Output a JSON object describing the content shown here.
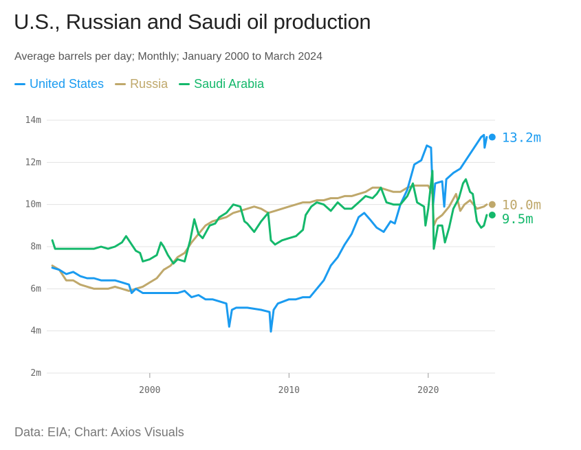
{
  "header": {
    "title": "U.S., Russian and Saudi oil production",
    "subtitle": "Average barrels per day; Monthly; January 2000 to March 2024"
  },
  "footer": {
    "source": "Data: EIA; Chart: Axios Visuals"
  },
  "chart_data": {
    "type": "line",
    "title": "U.S., Russian and Saudi oil production",
    "subtitle": "Average barrels per day; Monthly; January 2000 to March 2024",
    "xlabel": "",
    "ylabel": "",
    "xlim": [
      1992.6,
      2024.8
    ],
    "ylim": [
      2,
      14
    ],
    "y_ticks": [
      2,
      4,
      6,
      8,
      10,
      12,
      14
    ],
    "y_tick_labels": [
      "2m",
      "4m",
      "6m",
      "8m",
      "10m",
      "12m",
      "14m"
    ],
    "x_ticks": [
      2000,
      2010,
      2020
    ],
    "x_tick_labels": [
      "2000",
      "2010",
      "2020"
    ],
    "grid": true,
    "legend_position": "top-left",
    "series": [
      {
        "name": "United States",
        "color": "#1a9bf0",
        "end_label": "13.2m",
        "end_value": 13.2,
        "points": [
          [
            1993.0,
            7.0
          ],
          [
            1993.5,
            6.9
          ],
          [
            1994.0,
            6.7
          ],
          [
            1994.5,
            6.8
          ],
          [
            1995.0,
            6.6
          ],
          [
            1995.5,
            6.5
          ],
          [
            1996.0,
            6.5
          ],
          [
            1996.5,
            6.4
          ],
          [
            1997.0,
            6.4
          ],
          [
            1997.5,
            6.4
          ],
          [
            1998.0,
            6.3
          ],
          [
            1998.5,
            6.2
          ],
          [
            1998.7,
            5.8
          ],
          [
            1999.0,
            6.0
          ],
          [
            1999.5,
            5.8
          ],
          [
            2000.0,
            5.8
          ],
          [
            2001.0,
            5.8
          ],
          [
            2002.0,
            5.8
          ],
          [
            2002.5,
            5.9
          ],
          [
            2003.0,
            5.6
          ],
          [
            2003.5,
            5.7
          ],
          [
            2004.0,
            5.5
          ],
          [
            2004.5,
            5.5
          ],
          [
            2005.0,
            5.4
          ],
          [
            2005.5,
            5.3
          ],
          [
            2005.7,
            4.2
          ],
          [
            2005.9,
            5.0
          ],
          [
            2006.2,
            5.1
          ],
          [
            2007.0,
            5.1
          ],
          [
            2008.0,
            5.0
          ],
          [
            2008.6,
            4.9
          ],
          [
            2008.7,
            3.97
          ],
          [
            2008.9,
            5.0
          ],
          [
            2009.2,
            5.3
          ],
          [
            2010.0,
            5.5
          ],
          [
            2010.5,
            5.5
          ],
          [
            2011.0,
            5.6
          ],
          [
            2011.5,
            5.6
          ],
          [
            2012.0,
            6.0
          ],
          [
            2012.5,
            6.4
          ],
          [
            2013.0,
            7.1
          ],
          [
            2013.5,
            7.5
          ],
          [
            2014.0,
            8.1
          ],
          [
            2014.5,
            8.6
          ],
          [
            2015.0,
            9.4
          ],
          [
            2015.4,
            9.6
          ],
          [
            2015.8,
            9.3
          ],
          [
            2016.3,
            8.9
          ],
          [
            2016.8,
            8.7
          ],
          [
            2017.3,
            9.2
          ],
          [
            2017.6,
            9.1
          ],
          [
            2018.0,
            10.0
          ],
          [
            2018.5,
            10.7
          ],
          [
            2019.0,
            11.9
          ],
          [
            2019.5,
            12.1
          ],
          [
            2019.9,
            12.8
          ],
          [
            2020.2,
            12.7
          ],
          [
            2020.35,
            10.0
          ],
          [
            2020.5,
            11.0
          ],
          [
            2021.0,
            11.1
          ],
          [
            2021.15,
            9.9
          ],
          [
            2021.3,
            11.2
          ],
          [
            2021.8,
            11.5
          ],
          [
            2022.3,
            11.7
          ],
          [
            2022.8,
            12.2
          ],
          [
            2023.3,
            12.7
          ],
          [
            2023.8,
            13.2
          ],
          [
            2024.0,
            13.3
          ],
          [
            2024.05,
            12.7
          ],
          [
            2024.2,
            13.2
          ]
        ]
      },
      {
        "name": "Russia",
        "color": "#bfa86b",
        "end_label": "10.0m",
        "end_value": 10.0,
        "points": [
          [
            1993.0,
            7.1
          ],
          [
            1993.5,
            6.9
          ],
          [
            1994.0,
            6.4
          ],
          [
            1994.5,
            6.4
          ],
          [
            1995.0,
            6.2
          ],
          [
            1995.5,
            6.1
          ],
          [
            1996.0,
            6.0
          ],
          [
            1996.5,
            6.0
          ],
          [
            1997.0,
            6.0
          ],
          [
            1997.5,
            6.1
          ],
          [
            1998.0,
            6.0
          ],
          [
            1998.5,
            5.9
          ],
          [
            1999.0,
            6.0
          ],
          [
            1999.5,
            6.1
          ],
          [
            2000.0,
            6.3
          ],
          [
            2000.5,
            6.5
          ],
          [
            2001.0,
            6.9
          ],
          [
            2001.5,
            7.1
          ],
          [
            2002.0,
            7.5
          ],
          [
            2002.5,
            7.7
          ],
          [
            2003.0,
            8.2
          ],
          [
            2003.5,
            8.6
          ],
          [
            2004.0,
            9.0
          ],
          [
            2004.5,
            9.2
          ],
          [
            2005.0,
            9.3
          ],
          [
            2005.5,
            9.4
          ],
          [
            2006.0,
            9.6
          ],
          [
            2006.5,
            9.7
          ],
          [
            2007.0,
            9.8
          ],
          [
            2007.5,
            9.9
          ],
          [
            2008.0,
            9.8
          ],
          [
            2008.5,
            9.6
          ],
          [
            2009.0,
            9.7
          ],
          [
            2009.5,
            9.8
          ],
          [
            2010.0,
            9.9
          ],
          [
            2010.5,
            10.0
          ],
          [
            2011.0,
            10.1
          ],
          [
            2011.5,
            10.1
          ],
          [
            2012.0,
            10.2
          ],
          [
            2012.5,
            10.2
          ],
          [
            2013.0,
            10.3
          ],
          [
            2013.5,
            10.3
          ],
          [
            2014.0,
            10.4
          ],
          [
            2014.5,
            10.4
          ],
          [
            2015.0,
            10.5
          ],
          [
            2015.5,
            10.6
          ],
          [
            2016.0,
            10.8
          ],
          [
            2016.5,
            10.8
          ],
          [
            2017.0,
            10.7
          ],
          [
            2017.5,
            10.6
          ],
          [
            2018.0,
            10.6
          ],
          [
            2018.5,
            10.8
          ],
          [
            2019.0,
            10.9
          ],
          [
            2019.5,
            10.9
          ],
          [
            2020.0,
            10.9
          ],
          [
            2020.3,
            10.5
          ],
          [
            2020.4,
            9.0
          ],
          [
            2020.6,
            9.3
          ],
          [
            2021.0,
            9.5
          ],
          [
            2021.5,
            9.9
          ],
          [
            2022.0,
            10.5
          ],
          [
            2022.3,
            9.7
          ],
          [
            2022.6,
            10.0
          ],
          [
            2023.0,
            10.2
          ],
          [
            2023.5,
            9.8
          ],
          [
            2024.0,
            9.9
          ],
          [
            2024.2,
            10.0
          ]
        ]
      },
      {
        "name": "Saudi Arabia",
        "color": "#14b86b",
        "end_label": "9.5m",
        "end_value": 9.5,
        "points": [
          [
            1993.0,
            8.3
          ],
          [
            1993.2,
            7.9
          ],
          [
            1994.0,
            7.9
          ],
          [
            1995.0,
            7.9
          ],
          [
            1996.0,
            7.9
          ],
          [
            1996.5,
            8.0
          ],
          [
            1997.0,
            7.9
          ],
          [
            1997.5,
            8.0
          ],
          [
            1998.0,
            8.2
          ],
          [
            1998.3,
            8.5
          ],
          [
            1998.7,
            8.1
          ],
          [
            1999.0,
            7.8
          ],
          [
            1999.3,
            7.7
          ],
          [
            1999.5,
            7.3
          ],
          [
            2000.0,
            7.4
          ],
          [
            2000.5,
            7.6
          ],
          [
            2000.8,
            8.2
          ],
          [
            2001.0,
            8.0
          ],
          [
            2001.3,
            7.6
          ],
          [
            2001.7,
            7.2
          ],
          [
            2002.0,
            7.4
          ],
          [
            2002.5,
            7.3
          ],
          [
            2002.9,
            8.3
          ],
          [
            2003.2,
            9.3
          ],
          [
            2003.5,
            8.6
          ],
          [
            2003.8,
            8.4
          ],
          [
            2004.3,
            9.0
          ],
          [
            2004.7,
            9.1
          ],
          [
            2005.0,
            9.4
          ],
          [
            2005.5,
            9.6
          ],
          [
            2006.0,
            10.0
          ],
          [
            2006.5,
            9.9
          ],
          [
            2006.8,
            9.2
          ],
          [
            2007.0,
            9.1
          ],
          [
            2007.5,
            8.7
          ],
          [
            2008.0,
            9.2
          ],
          [
            2008.5,
            9.6
          ],
          [
            2008.7,
            8.3
          ],
          [
            2009.0,
            8.1
          ],
          [
            2009.5,
            8.3
          ],
          [
            2010.0,
            8.4
          ],
          [
            2010.5,
            8.5
          ],
          [
            2011.0,
            8.8
          ],
          [
            2011.2,
            9.5
          ],
          [
            2011.6,
            9.9
          ],
          [
            2012.0,
            10.1
          ],
          [
            2012.5,
            10.0
          ],
          [
            2013.0,
            9.7
          ],
          [
            2013.5,
            10.1
          ],
          [
            2014.0,
            9.8
          ],
          [
            2014.5,
            9.8
          ],
          [
            2015.0,
            10.1
          ],
          [
            2015.5,
            10.4
          ],
          [
            2016.0,
            10.3
          ],
          [
            2016.3,
            10.5
          ],
          [
            2016.6,
            10.8
          ],
          [
            2017.0,
            10.1
          ],
          [
            2017.5,
            10.0
          ],
          [
            2018.0,
            10.0
          ],
          [
            2018.5,
            10.4
          ],
          [
            2018.9,
            11.0
          ],
          [
            2019.2,
            10.1
          ],
          [
            2019.7,
            9.9
          ],
          [
            2019.8,
            9.0
          ],
          [
            2020.0,
            9.8
          ],
          [
            2020.3,
            11.6
          ],
          [
            2020.4,
            7.9
          ],
          [
            2020.7,
            9.0
          ],
          [
            2021.0,
            9.0
          ],
          [
            2021.2,
            8.2
          ],
          [
            2021.5,
            8.9
          ],
          [
            2021.8,
            9.8
          ],
          [
            2022.2,
            10.3
          ],
          [
            2022.5,
            11.0
          ],
          [
            2022.7,
            11.2
          ],
          [
            2023.0,
            10.6
          ],
          [
            2023.2,
            10.5
          ],
          [
            2023.5,
            9.2
          ],
          [
            2023.8,
            8.9
          ],
          [
            2024.0,
            9.0
          ],
          [
            2024.2,
            9.5
          ]
        ]
      }
    ]
  }
}
